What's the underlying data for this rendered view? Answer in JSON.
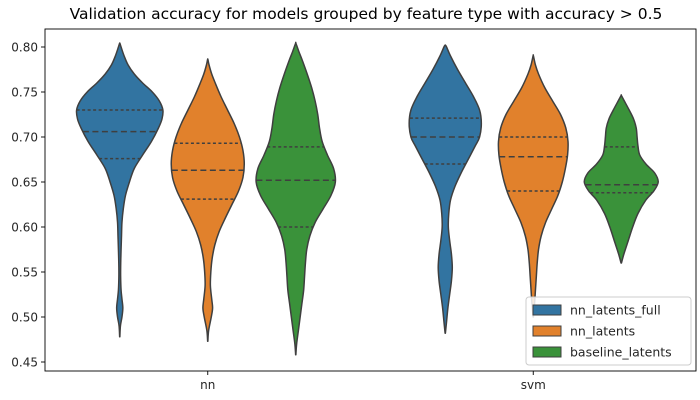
{
  "chart_data": {
    "type": "violin",
    "title": "Validation accuracy for models grouped by feature type with accuracy > 0.5",
    "xlabel": "",
    "ylabel": "",
    "categories": [
      "nn",
      "svm"
    ],
    "ylim": [
      0.44,
      0.82
    ],
    "yticks": [
      "0.45",
      "0.50",
      "0.55",
      "0.60",
      "0.65",
      "0.70",
      "0.75",
      "0.80"
    ],
    "grid": false,
    "legend_placement": "lower-right",
    "series": [
      {
        "name": "nn_latents_full",
        "color": "#3274a1",
        "groups": [
          {
            "category": "nn",
            "range": [
              0.478,
              0.804
            ],
            "quartiles": [
              0.676,
              0.706,
              0.73
            ],
            "profile": [
              [
                0.478,
                0.002
              ],
              [
                0.49,
                0.015
              ],
              [
                0.5,
                0.05
              ],
              [
                0.51,
                0.07
              ],
              [
                0.52,
                0.05
              ],
              [
                0.53,
                0.03
              ],
              [
                0.545,
                0.02
              ],
              [
                0.56,
                0.022
              ],
              [
                0.575,
                0.03
              ],
              [
                0.59,
                0.04
              ],
              [
                0.605,
                0.05
              ],
              [
                0.62,
                0.08
              ],
              [
                0.635,
                0.13
              ],
              [
                0.65,
                0.22
              ],
              [
                0.665,
                0.33
              ],
              [
                0.68,
                0.52
              ],
              [
                0.695,
                0.72
              ],
              [
                0.71,
                0.88
              ],
              [
                0.72,
                0.96
              ],
              [
                0.73,
                0.98
              ],
              [
                0.74,
                0.9
              ],
              [
                0.75,
                0.74
              ],
              [
                0.76,
                0.52
              ],
              [
                0.77,
                0.33
              ],
              [
                0.78,
                0.19
              ],
              [
                0.79,
                0.1
              ],
              [
                0.8,
                0.03
              ],
              [
                0.804,
                0.004
              ]
            ]
          },
          {
            "category": "svm",
            "range": [
              0.482,
              0.802
            ],
            "quartiles": [
              0.67,
              0.7,
              0.721
            ],
            "profile": [
              [
                0.482,
                0.003
              ],
              [
                0.495,
                0.03
              ],
              [
                0.51,
                0.06
              ],
              [
                0.525,
                0.1
              ],
              [
                0.54,
                0.14
              ],
              [
                0.555,
                0.16
              ],
              [
                0.57,
                0.14
              ],
              [
                0.585,
                0.1
              ],
              [
                0.6,
                0.07
              ],
              [
                0.615,
                0.08
              ],
              [
                0.63,
                0.12
              ],
              [
                0.645,
                0.22
              ],
              [
                0.66,
                0.36
              ],
              [
                0.675,
                0.52
              ],
              [
                0.69,
                0.68
              ],
              [
                0.7,
                0.78
              ],
              [
                0.715,
                0.82
              ],
              [
                0.73,
                0.78
              ],
              [
                0.745,
                0.64
              ],
              [
                0.76,
                0.46
              ],
              [
                0.775,
                0.28
              ],
              [
                0.79,
                0.12
              ],
              [
                0.8,
                0.03
              ],
              [
                0.802,
                0.004
              ]
            ]
          }
        ]
      },
      {
        "name": "nn_latents",
        "color": "#e1812c",
        "groups": [
          {
            "category": "nn",
            "range": [
              0.473,
              0.786
            ],
            "quartiles": [
              0.631,
              0.663,
              0.693
            ],
            "profile": [
              [
                0.473,
                0.002
              ],
              [
                0.485,
                0.02
              ],
              [
                0.5,
                0.08
              ],
              [
                0.51,
                0.11
              ],
              [
                0.52,
                0.09
              ],
              [
                0.535,
                0.06
              ],
              [
                0.55,
                0.07
              ],
              [
                0.565,
                0.1
              ],
              [
                0.58,
                0.16
              ],
              [
                0.595,
                0.26
              ],
              [
                0.61,
                0.4
              ],
              [
                0.625,
                0.55
              ],
              [
                0.64,
                0.7
              ],
              [
                0.655,
                0.8
              ],
              [
                0.67,
                0.83
              ],
              [
                0.685,
                0.8
              ],
              [
                0.7,
                0.72
              ],
              [
                0.715,
                0.6
              ],
              [
                0.73,
                0.45
              ],
              [
                0.745,
                0.3
              ],
              [
                0.76,
                0.17
              ],
              [
                0.77,
                0.09
              ],
              [
                0.78,
                0.03
              ],
              [
                0.786,
                0.004
              ]
            ]
          },
          {
            "category": "svm",
            "range": [
              0.5,
              0.79
            ],
            "quartiles": [
              0.64,
              0.678,
              0.7
            ],
            "profile": [
              [
                0.5,
                0.003
              ],
              [
                0.515,
                0.03
              ],
              [
                0.53,
                0.05
              ],
              [
                0.545,
                0.07
              ],
              [
                0.56,
                0.09
              ],
              [
                0.575,
                0.12
              ],
              [
                0.59,
                0.18
              ],
              [
                0.605,
                0.28
              ],
              [
                0.62,
                0.42
              ],
              [
                0.635,
                0.56
              ],
              [
                0.65,
                0.66
              ],
              [
                0.665,
                0.73
              ],
              [
                0.68,
                0.78
              ],
              [
                0.695,
                0.79
              ],
              [
                0.71,
                0.74
              ],
              [
                0.725,
                0.62
              ],
              [
                0.74,
                0.44
              ],
              [
                0.755,
                0.26
              ],
              [
                0.77,
                0.12
              ],
              [
                0.78,
                0.05
              ],
              [
                0.79,
                0.004
              ]
            ]
          }
        ]
      },
      {
        "name": "baseline_latents",
        "color": "#3a923a",
        "groups": [
          {
            "category": "nn",
            "range": [
              0.458,
              0.804
            ],
            "quartiles": [
              0.6,
              0.652,
              0.689
            ],
            "profile": [
              [
                0.458,
                0.002
              ],
              [
                0.47,
                0.02
              ],
              [
                0.485,
                0.06
              ],
              [
                0.5,
                0.1
              ],
              [
                0.515,
                0.14
              ],
              [
                0.53,
                0.18
              ],
              [
                0.545,
                0.2
              ],
              [
                0.56,
                0.22
              ],
              [
                0.575,
                0.25
              ],
              [
                0.59,
                0.32
              ],
              [
                0.605,
                0.44
              ],
              [
                0.62,
                0.62
              ],
              [
                0.635,
                0.8
              ],
              [
                0.65,
                0.9
              ],
              [
                0.665,
                0.86
              ],
              [
                0.68,
                0.72
              ],
              [
                0.695,
                0.6
              ],
              [
                0.71,
                0.54
              ],
              [
                0.725,
                0.5
              ],
              [
                0.74,
                0.44
              ],
              [
                0.755,
                0.36
              ],
              [
                0.77,
                0.26
              ],
              [
                0.785,
                0.15
              ],
              [
                0.795,
                0.07
              ],
              [
                0.804,
                0.004
              ]
            ]
          },
          {
            "category": "svm",
            "range": [
              0.56,
              0.746
            ],
            "quartiles": [
              0.638,
              0.647,
              0.689
            ],
            "profile": [
              [
                0.56,
                0.004
              ],
              [
                0.57,
                0.06
              ],
              [
                0.585,
                0.16
              ],
              [
                0.6,
                0.26
              ],
              [
                0.615,
                0.38
              ],
              [
                0.63,
                0.56
              ],
              [
                0.64,
                0.74
              ],
              [
                0.65,
                0.84
              ],
              [
                0.66,
                0.76
              ],
              [
                0.67,
                0.56
              ],
              [
                0.68,
                0.42
              ],
              [
                0.69,
                0.38
              ],
              [
                0.7,
                0.36
              ],
              [
                0.71,
                0.34
              ],
              [
                0.72,
                0.28
              ],
              [
                0.73,
                0.18
              ],
              [
                0.74,
                0.07
              ],
              [
                0.746,
                0.004
              ]
            ]
          }
        ]
      }
    ]
  }
}
